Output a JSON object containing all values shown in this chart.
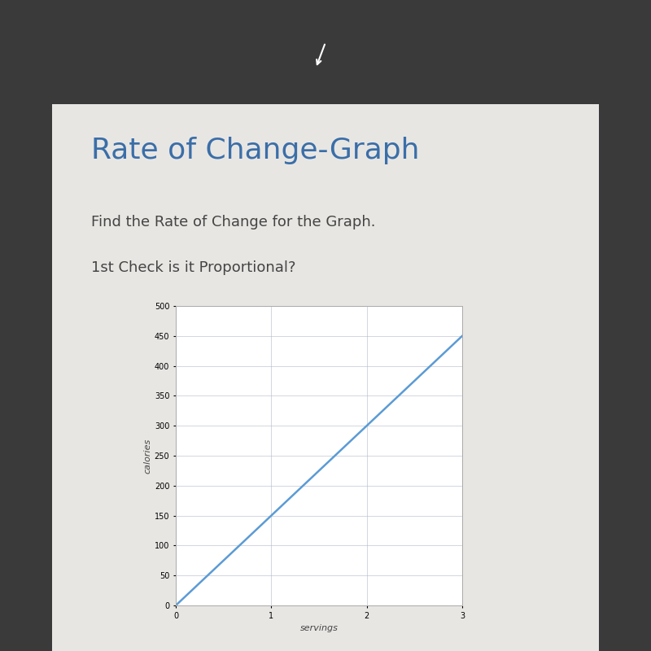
{
  "title": "Rate of Change-Graph",
  "subtitle1": "Find the Rate of Change for the Graph.",
  "subtitle2": "1st Check is it Proportional?",
  "title_color": "#3a6ea8",
  "subtitle_color": "#444444",
  "xlabel": "servings",
  "ylabel": "calories",
  "x_data": [
    0,
    3
  ],
  "y_data": [
    0,
    450
  ],
  "xlim": [
    0,
    3
  ],
  "ylim": [
    0,
    500
  ],
  "xticks": [
    0,
    1,
    2,
    3
  ],
  "yticks": [
    0,
    50,
    100,
    150,
    200,
    250,
    300,
    350,
    400,
    450,
    500
  ],
  "line_color": "#5b9bd5",
  "line_width": 1.8,
  "grid_color": "#b0b8c8",
  "dark_bg_color": "#3a3a3a",
  "content_bg_color": "#e8e6e3",
  "plot_bg_color": "#ffffff",
  "title_fontsize": 26,
  "subtitle_fontsize": 13,
  "axis_label_fontsize": 8,
  "tick_fontsize": 7
}
